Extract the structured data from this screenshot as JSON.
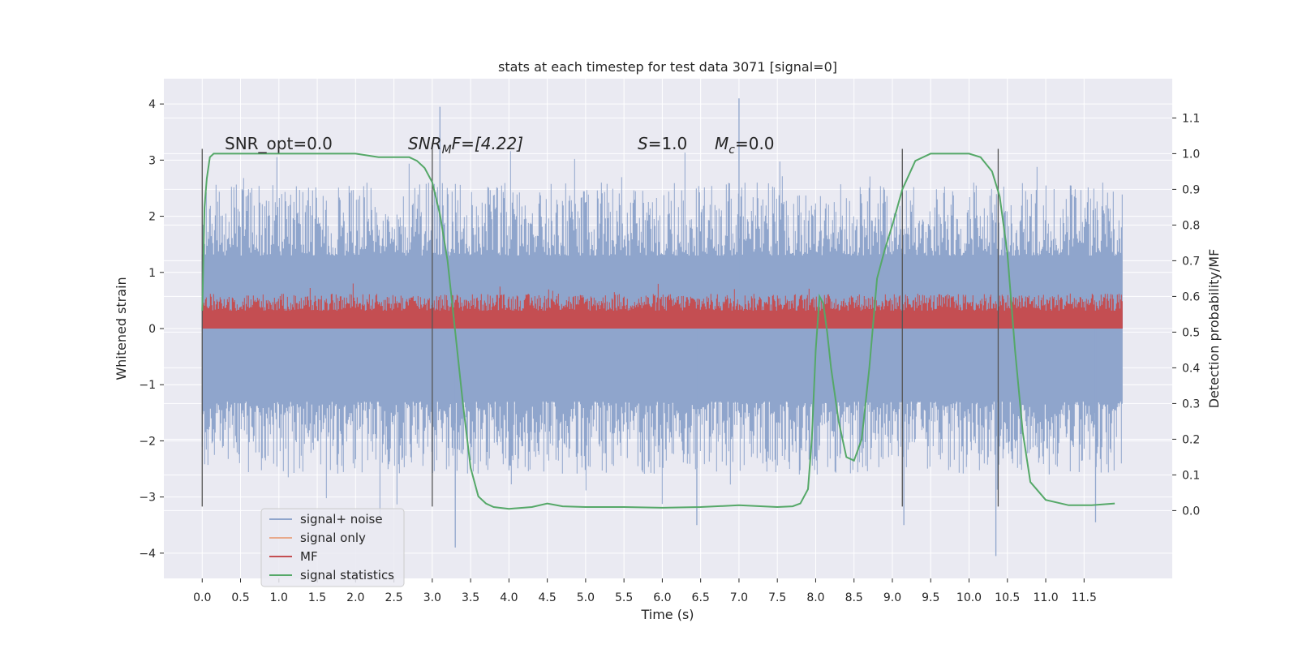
{
  "chart_data": {
    "type": "line",
    "title": "stats at each timestep for test data 3071 [signal=0]",
    "xlabel": "Time (s)",
    "ylabel": "Whitened strain",
    "y2label": "Detection probability/MF",
    "xlim": [
      -0.5,
      12.65
    ],
    "ylim": [
      -4.45,
      4.45
    ],
    "y2lim": [
      -0.19,
      1.21
    ],
    "xticks": [
      0.0,
      0.5,
      1.0,
      1.5,
      2.0,
      2.5,
      3.0,
      3.5,
      4.0,
      4.5,
      5.0,
      5.5,
      6.0,
      6.5,
      7.0,
      7.5,
      8.0,
      8.5,
      9.0,
      9.5,
      10.0,
      10.5,
      11.0,
      11.5
    ],
    "xtick_labels": [
      "0.0",
      "0.5",
      "1.0",
      "1.5",
      "2.0",
      "2.5",
      "3.0",
      "3.5",
      "4.0",
      "4.5",
      "5.0",
      "5.5",
      "6.0",
      "6.5",
      "7.0",
      "7.5",
      "8.0",
      "8.5",
      "9.0",
      "9.5",
      "10.0",
      "10.5",
      "11.0",
      "11.5"
    ],
    "yticks": [
      4,
      3,
      2,
      1,
      0,
      -1,
      -2,
      -3,
      -4
    ],
    "ytick_labels": [
      "4",
      "3",
      "2",
      "1",
      "0",
      "−1",
      "−2",
      "−3",
      "−4"
    ],
    "y2ticks": [
      1.1,
      1.0,
      0.9,
      0.8,
      0.7,
      0.6,
      0.5,
      0.4,
      0.3,
      0.2,
      0.1,
      0.0
    ],
    "y2tick_labels": [
      "1.1",
      "1.0",
      "0.9",
      "0.8",
      "0.7",
      "0.6",
      "0.5",
      "0.4",
      "0.3",
      "0.2",
      "0.1",
      "0.0"
    ],
    "grid": true,
    "legend_position": "bottom-left",
    "annotations": {
      "snr_opt": "SNR_opt=0.0",
      "snr_mf_sym": "SNR",
      "snr_mf_sub": "M",
      "snr_mf_rest": "F=[4.22]",
      "s_sym": "S",
      "s_rest": "=1.0",
      "mc_sym": "M",
      "mc_sub": "c",
      "mc_rest": "=0.0"
    },
    "vertical_markers": [
      0.0,
      3.0,
      9.13,
      10.38
    ],
    "vertical_marker_range": [
      -3.17,
      3.2
    ],
    "noise_envelope": {
      "x_range": [
        0.0,
        12.0
      ],
      "core_band": [
        -1.3,
        1.3
      ],
      "typical_peak": 2.6,
      "max_value": 4.1,
      "min_value": -4.05
    },
    "mf_band": {
      "x_range": [
        0.0,
        12.0
      ],
      "baseline": 0.0,
      "typical_top": 0.62,
      "max_value": 0.97
    },
    "series": [
      {
        "name": "signal+ noise",
        "color": "#8fa5cc",
        "kind": "dense-noise"
      },
      {
        "name": "signal only",
        "color": "#e8a98b",
        "kind": "flat",
        "values_note_free": true,
        "x": [
          0.0,
          12.0
        ],
        "y": [
          0.0,
          0.0
        ]
      },
      {
        "name": "MF",
        "color": "#c44e52",
        "kind": "dense-noise"
      },
      {
        "name": "signal statistics",
        "color": "#55a868",
        "axis": "right",
        "x": [
          0.0,
          0.03,
          0.06,
          0.1,
          0.15,
          0.22,
          0.3,
          0.5,
          1.0,
          1.5,
          2.0,
          2.3,
          2.5,
          2.7,
          2.8,
          2.9,
          3.0,
          3.1,
          3.2,
          3.3,
          3.4,
          3.5,
          3.6,
          3.7,
          3.8,
          4.0,
          4.3,
          4.5,
          4.7,
          5.0,
          5.5,
          6.0,
          6.5,
          7.0,
          7.5,
          7.7,
          7.8,
          7.9,
          7.95,
          8.0,
          8.05,
          8.1,
          8.15,
          8.2,
          8.3,
          8.4,
          8.5,
          8.6,
          8.7,
          8.8,
          8.9,
          9.0,
          9.13,
          9.3,
          9.5,
          10.0,
          10.15,
          10.3,
          10.4,
          10.5,
          10.6,
          10.7,
          10.8,
          11.0,
          11.3,
          11.6,
          11.9
        ],
        "y": [
          0.56,
          0.85,
          0.93,
          0.99,
          1.0,
          1.0,
          1.0,
          1.0,
          1.0,
          1.0,
          1.0,
          0.99,
          0.99,
          0.99,
          0.98,
          0.96,
          0.92,
          0.83,
          0.7,
          0.5,
          0.3,
          0.12,
          0.04,
          0.02,
          0.01,
          0.005,
          0.01,
          0.02,
          0.012,
          0.01,
          0.01,
          0.008,
          0.01,
          0.015,
          0.01,
          0.012,
          0.02,
          0.06,
          0.2,
          0.45,
          0.6,
          0.58,
          0.5,
          0.4,
          0.25,
          0.15,
          0.14,
          0.2,
          0.4,
          0.65,
          0.73,
          0.8,
          0.9,
          0.98,
          1.0,
          1.0,
          0.99,
          0.95,
          0.88,
          0.72,
          0.45,
          0.22,
          0.08,
          0.03,
          0.015,
          0.015,
          0.02
        ]
      }
    ]
  }
}
